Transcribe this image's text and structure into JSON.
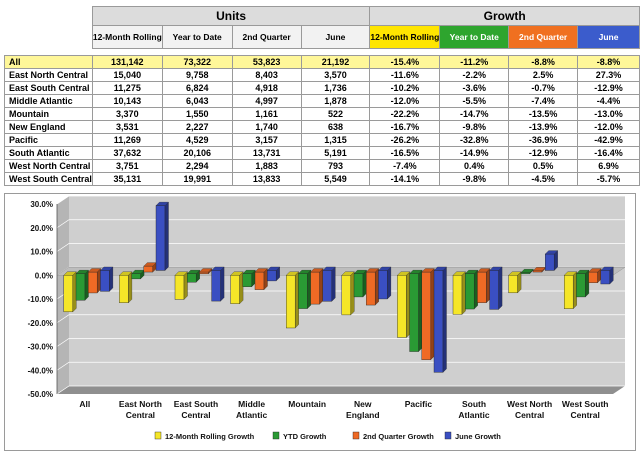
{
  "table": {
    "group_headers": [
      "Units",
      "Growth"
    ],
    "col_headers": [
      "12-Month Rolling",
      "Year to Date",
      "2nd Quarter",
      "June",
      "12-Month Rolling",
      "Year to Date",
      "2nd Quarter",
      "June"
    ],
    "rows": [
      {
        "label": "All",
        "cells": [
          "131,142",
          "73,322",
          "53,823",
          "21,192",
          "-15.4%",
          "-11.2%",
          "-8.8%",
          "-8.8%"
        ]
      },
      {
        "label": "East North Central",
        "cells": [
          "15,040",
          "9,758",
          "8,403",
          "3,570",
          "-11.6%",
          "-2.2%",
          "2.5%",
          "27.3%"
        ]
      },
      {
        "label": "East South Central",
        "cells": [
          "11,275",
          "6,824",
          "4,918",
          "1,736",
          "-10.2%",
          "-3.6%",
          "-0.7%",
          "-12.9%"
        ]
      },
      {
        "label": "Middle Atlantic",
        "cells": [
          "10,143",
          "6,043",
          "4,997",
          "1,878",
          "-12.0%",
          "-5.5%",
          "-7.4%",
          "-4.4%"
        ]
      },
      {
        "label": "Mountain",
        "cells": [
          "3,370",
          "1,550",
          "1,161",
          "522",
          "-22.2%",
          "-14.7%",
          "-13.5%",
          "-13.0%"
        ]
      },
      {
        "label": "New England",
        "cells": [
          "3,531",
          "2,227",
          "1,740",
          "638",
          "-16.7%",
          "-9.8%",
          "-13.9%",
          "-12.0%"
        ]
      },
      {
        "label": "Pacific",
        "cells": [
          "11,269",
          "4,529",
          "3,157",
          "1,315",
          "-26.2%",
          "-32.8%",
          "-36.9%",
          "-42.9%"
        ]
      },
      {
        "label": "South Atlantic",
        "cells": [
          "37,632",
          "20,106",
          "13,731",
          "5,191",
          "-16.5%",
          "-14.9%",
          "-12.9%",
          "-16.4%"
        ]
      },
      {
        "label": "West North Central",
        "cells": [
          "3,751",
          "2,294",
          "1,883",
          "793",
          "-7.4%",
          "0.4%",
          "0.5%",
          "6.9%"
        ]
      },
      {
        "label": "West South Central",
        "cells": [
          "35,131",
          "19,991",
          "13,833",
          "5,549",
          "-14.1%",
          "-9.8%",
          "-4.5%",
          "-5.7%"
        ]
      }
    ]
  },
  "chart_data": {
    "type": "bar",
    "categories": [
      [
        "All"
      ],
      [
        "East North",
        "Central"
      ],
      [
        "East South",
        "Central"
      ],
      [
        "Middle",
        "Atlantic"
      ],
      [
        "Mountain"
      ],
      [
        "New",
        "England"
      ],
      [
        "Pacific"
      ],
      [
        "South",
        "Atlantic"
      ],
      [
        "West North",
        "Central"
      ],
      [
        "West South",
        "Central"
      ]
    ],
    "series": [
      {
        "name": "12-Month Rolling Growth",
        "color": "#f5e628",
        "values": [
          -15.4,
          -11.6,
          -10.2,
          -12.0,
          -22.2,
          -16.7,
          -26.2,
          -16.5,
          -7.4,
          -14.1
        ]
      },
      {
        "name": "YTD Growth",
        "color": "#2a9a34",
        "values": [
          -11.2,
          -2.2,
          -3.6,
          -5.5,
          -14.7,
          -9.8,
          -32.8,
          -14.9,
          0.4,
          -9.8
        ]
      },
      {
        "name": "2nd Quarter Growth",
        "color": "#ef6a25",
        "values": [
          -8.8,
          2.5,
          -0.7,
          -7.4,
          -13.5,
          -13.9,
          -36.9,
          -12.9,
          0.5,
          -4.5
        ]
      },
      {
        "name": "June Growth",
        "color": "#3a4fc2",
        "values": [
          -8.8,
          27.3,
          -12.9,
          -4.4,
          -13.0,
          -12.0,
          -42.9,
          -16.4,
          6.9,
          -5.7
        ]
      }
    ],
    "ylim": [
      -50,
      30
    ],
    "yticks": [
      "30.0%",
      "20.0%",
      "10.0%",
      "0.0%",
      "-10.0%",
      "-20.0%",
      "-30.0%",
      "-40.0%",
      "-50.0%"
    ],
    "grid": true,
    "legend": "bottom"
  }
}
